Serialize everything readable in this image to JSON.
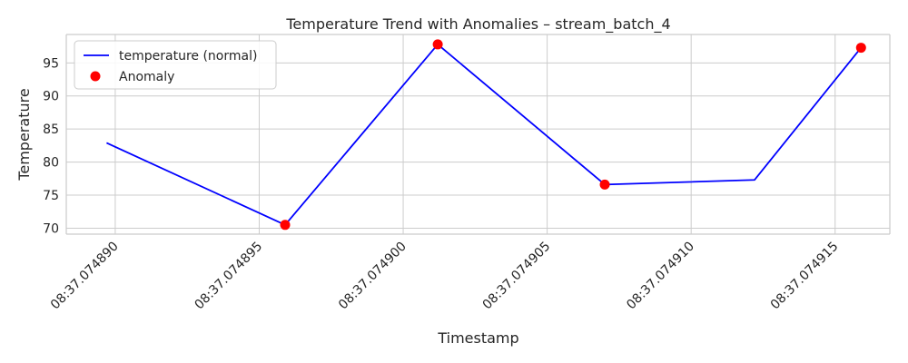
{
  "chart_data": {
    "type": "line",
    "title": "Temperature Trend with Anomalies – stream_batch_4",
    "xlabel": "Timestamp",
    "ylabel": "Temperature",
    "x_tick_labels": [
      "08:37.074890",
      "08:37.074895",
      "08:37.074900",
      "08:37.074905",
      "08:37.074910",
      "08:37.074915"
    ],
    "x_ticks": [
      0.07489,
      0.074895,
      0.0749,
      0.074905,
      0.07491,
      0.074915
    ],
    "y_ticks": [
      70,
      75,
      80,
      85,
      90,
      95
    ],
    "xlim": [
      0.0748883,
      0.0749169
    ],
    "ylim": [
      69.1,
      99.3
    ],
    "grid": true,
    "legend_position": "top-left",
    "series": [
      {
        "name": "temperature (normal)",
        "color": "#0000ff",
        "x": [
          0.0748897,
          0.0748959,
          0.0749012,
          0.074907,
          0.0749122,
          0.0749159
        ],
        "y": [
          82.9,
          70.5,
          97.8,
          76.6,
          77.3,
          97.3
        ]
      },
      {
        "name": "Anomaly",
        "color": "#ff0000",
        "marker": "circle",
        "x": [
          0.0748959,
          0.0749012,
          0.074907,
          0.0749159
        ],
        "y": [
          70.5,
          97.8,
          76.6,
          97.3
        ]
      }
    ]
  }
}
